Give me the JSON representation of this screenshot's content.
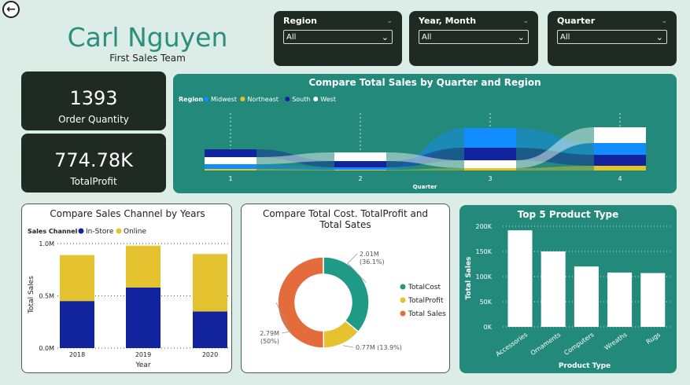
{
  "header": {
    "name": "Carl Nguyen",
    "team": "First Sales Team"
  },
  "slicers": [
    {
      "label": "Region",
      "value": "All"
    },
    {
      "label": "Year, Month",
      "value": "All"
    },
    {
      "label": "Quarter",
      "value": "All"
    }
  ],
  "kpis": [
    {
      "value": "1393",
      "label": "Order Quantity"
    },
    {
      "value": "774.78K",
      "label": "TotalProfit"
    }
  ],
  "colors": {
    "midwest": "#118dff",
    "northeast": "#e5c524",
    "south": "#12239e",
    "west": "#ffffff",
    "instore": "#12239e",
    "online": "#e5c22f",
    "totalcost": "#1f9a86",
    "totalprofit": "#e5c22f",
    "totalsales": "#e46c3c"
  },
  "chart_data": [
    {
      "type": "area",
      "title": "Compare Total Sales by Quarter and Region",
      "legend_title": "Region",
      "xlabel": "Quarter",
      "categories": [
        "1",
        "2",
        "3",
        "4"
      ],
      "series": [
        {
          "name": "Midwest",
          "values": [
            6,
            3,
            25,
            15
          ]
        },
        {
          "name": "Northeast",
          "values": [
            2,
            1,
            3,
            6
          ]
        },
        {
          "name": "South",
          "values": [
            10,
            8,
            16,
            14
          ]
        },
        {
          "name": "West",
          "values": [
            9,
            11,
            10,
            20
          ]
        }
      ]
    },
    {
      "type": "bar",
      "stacked": true,
      "title": "Compare Sales Channel by Years",
      "legend_title": "Sales Channel",
      "xlabel": "Year",
      "ylabel": "Total Sales",
      "categories": [
        "2018",
        "2019",
        "2020"
      ],
      "yticks": [
        "0.0M",
        "0.5M",
        "1.0M"
      ],
      "ylim": [
        0,
        1.0
      ],
      "series": [
        {
          "name": "In-Store",
          "values": [
            0.45,
            0.58,
            0.35
          ]
        },
        {
          "name": "Online",
          "values": [
            0.44,
            0.4,
            0.55
          ]
        }
      ]
    },
    {
      "type": "pie",
      "donut": true,
      "title": "Compare Total Cost. TotalProfit and Total Sates",
      "slices": [
        {
          "name": "TotalCost",
          "value": 2.01,
          "label": "2.01M",
          "pct": "(36.1%)"
        },
        {
          "name": "TotalProfit",
          "value": 0.77,
          "label": "0.77M (13.9%)",
          "pct": ""
        },
        {
          "name": "Total Sales",
          "value": 2.79,
          "label": "2.79M",
          "pct": "(50%)"
        }
      ]
    },
    {
      "type": "bar",
      "title": "Top 5 Product Type",
      "xlabel": "Product Type",
      "ylabel": "Total Sales",
      "categories": [
        "Accessories",
        "Ornaments",
        "Computers",
        "Wreaths",
        "Rugs"
      ],
      "values": [
        192000,
        150000,
        120000,
        108000,
        107000
      ],
      "yticks": [
        "0K",
        "50K",
        "100K",
        "150K",
        "200K"
      ],
      "ylim": [
        0,
        200000
      ]
    }
  ]
}
